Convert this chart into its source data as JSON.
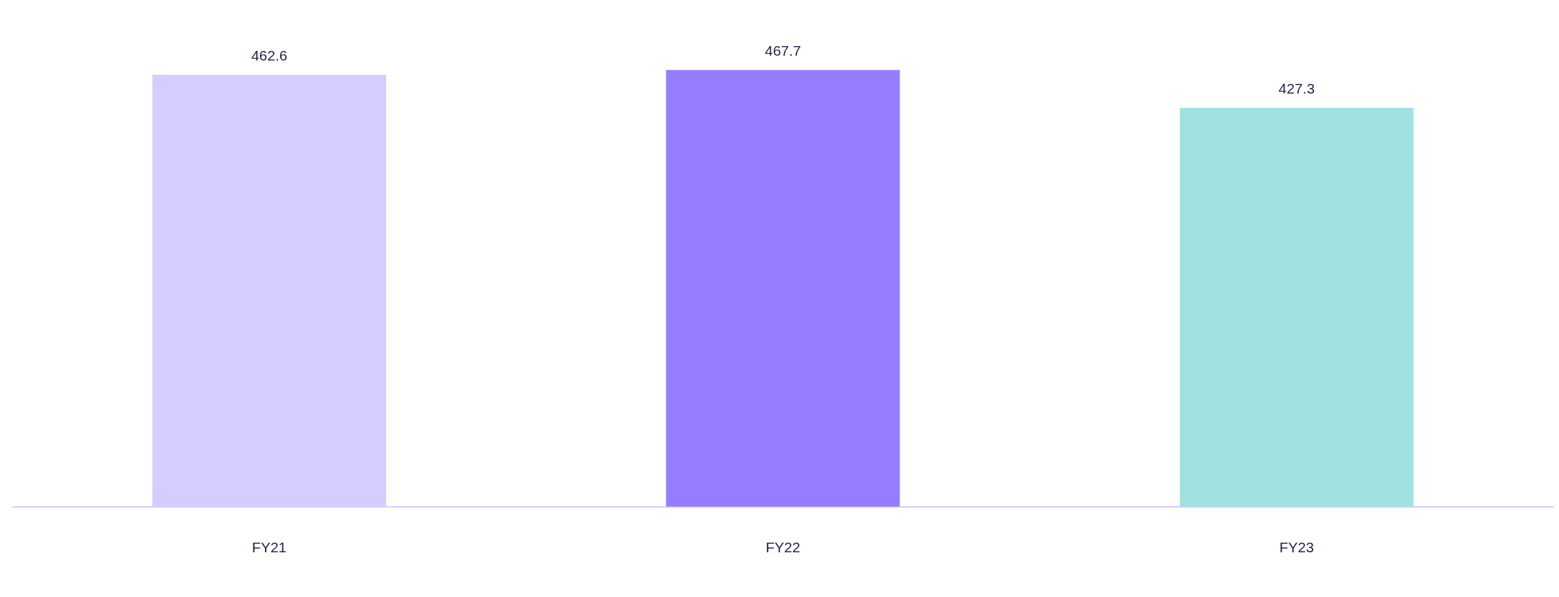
{
  "chart_data": {
    "type": "bar",
    "categories": [
      "FY21",
      "FY22",
      "FY23"
    ],
    "values": [
      462.6,
      467.7,
      427.3
    ],
    "colors": [
      "#d6ccff",
      "#967dff",
      "#a1e1e1"
    ],
    "data_labels": true,
    "grid": false,
    "legend": false,
    "tick_labels": "x"
  }
}
